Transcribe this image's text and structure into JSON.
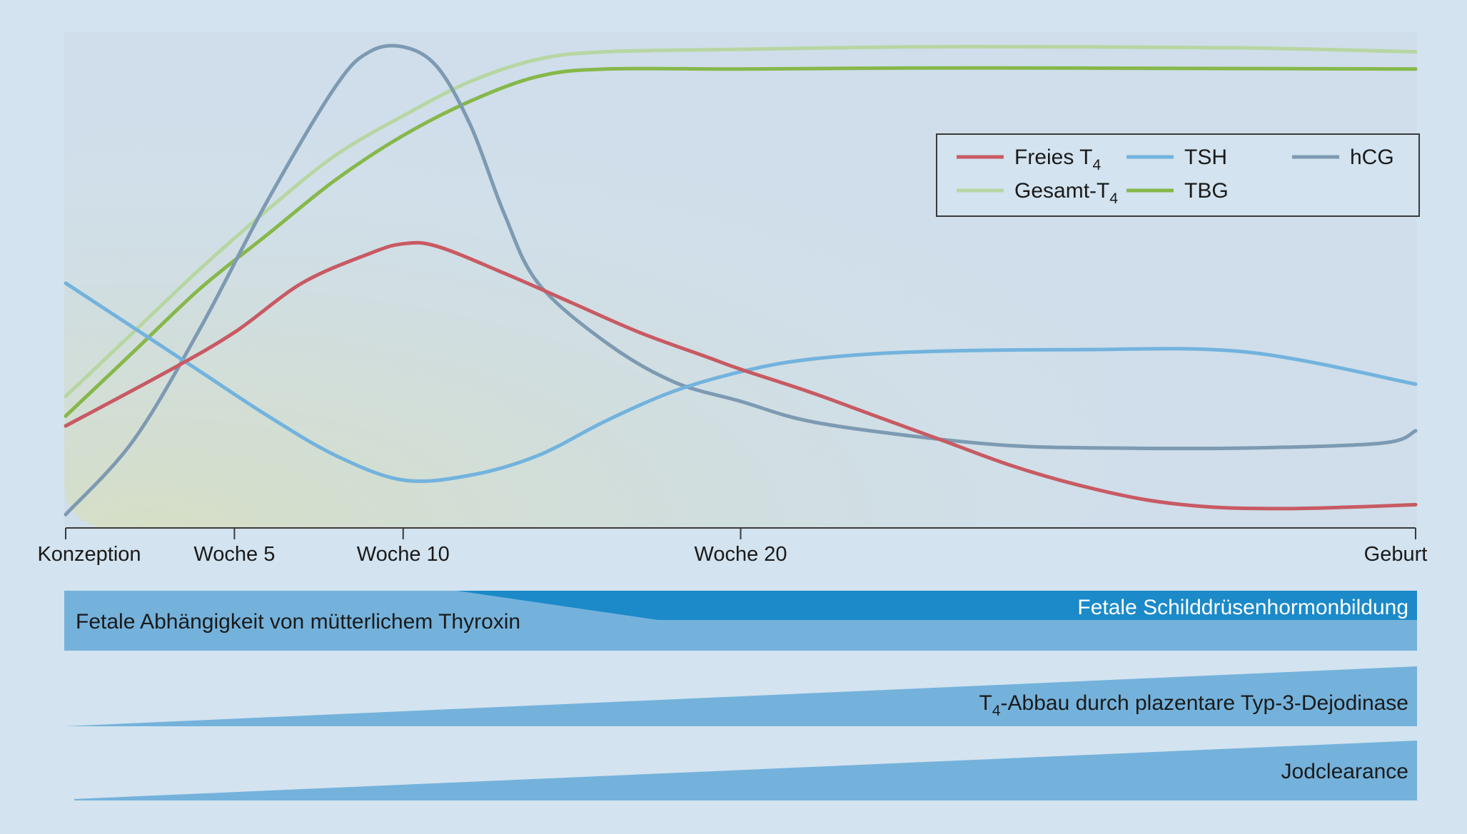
{
  "chart_data": {
    "type": "line",
    "title": "",
    "xlabel": "",
    "ylabel": "",
    "x_domain": [
      0,
      40
    ],
    "y_domain": [
      0,
      100
    ],
    "grid": false,
    "legend_placement": "top-right",
    "x_ticks": [
      {
        "value": 0,
        "label": "Konzeption"
      },
      {
        "value": 5,
        "label": "Woche 5"
      },
      {
        "value": 10,
        "label": "Woche 10"
      },
      {
        "value": 20,
        "label": "Woche 20"
      },
      {
        "value": 40,
        "label": "Geburt"
      }
    ],
    "series": [
      {
        "key": "freies_t4",
        "name": "Freies T",
        "subscript": "4",
        "color": "#c85a63",
        "points": [
          [
            0,
            20
          ],
          [
            3,
            31
          ],
          [
            5,
            39
          ],
          [
            7,
            49
          ],
          [
            9,
            55
          ],
          [
            10,
            57
          ],
          [
            11,
            56.5
          ],
          [
            13,
            51
          ],
          [
            15,
            45
          ],
          [
            17,
            39
          ],
          [
            19,
            34
          ],
          [
            20,
            31.5
          ],
          [
            22,
            27
          ],
          [
            24,
            22
          ],
          [
            26,
            17
          ],
          [
            28,
            12
          ],
          [
            30,
            8
          ],
          [
            32,
            5
          ],
          [
            34,
            3.5
          ],
          [
            36,
            3.2
          ],
          [
            38,
            3.5
          ],
          [
            40,
            4
          ]
        ]
      },
      {
        "key": "tsh",
        "name": "TSH",
        "color": "#72b3de",
        "points": [
          [
            0,
            49
          ],
          [
            2,
            40
          ],
          [
            4,
            31
          ],
          [
            6,
            22
          ],
          [
            8,
            14
          ],
          [
            10,
            9
          ],
          [
            12,
            10
          ],
          [
            14,
            14
          ],
          [
            16,
            21
          ],
          [
            18,
            27
          ],
          [
            20,
            31
          ],
          [
            22,
            33.5
          ],
          [
            25,
            35
          ],
          [
            30,
            35.5
          ],
          [
            35,
            35
          ],
          [
            40,
            28.5
          ]
        ]
      },
      {
        "key": "hcg",
        "name": "hCG",
        "color": "#7d9ab2",
        "points": [
          [
            0,
            2
          ],
          [
            2,
            17
          ],
          [
            4,
            40
          ],
          [
            6,
            66
          ],
          [
            8,
            89
          ],
          [
            9,
            96
          ],
          [
            10,
            97
          ],
          [
            11,
            93
          ],
          [
            12,
            81
          ],
          [
            13,
            63
          ],
          [
            14,
            49
          ],
          [
            16,
            37
          ],
          [
            18,
            29
          ],
          [
            20,
            25
          ],
          [
            22,
            21
          ],
          [
            25,
            18
          ],
          [
            28,
            16
          ],
          [
            31,
            15.5
          ],
          [
            35,
            15.5
          ],
          [
            39,
            16.5
          ],
          [
            40,
            19
          ]
        ]
      },
      {
        "key": "gesamt_t4",
        "name": "Gesamt-T",
        "subscript": "4",
        "color": "#b7d6a2",
        "points": [
          [
            0,
            26
          ],
          [
            2,
            39
          ],
          [
            4,
            52
          ],
          [
            6,
            64
          ],
          [
            8,
            75
          ],
          [
            10,
            83
          ],
          [
            12,
            90
          ],
          [
            14,
            94.5
          ],
          [
            16,
            96
          ],
          [
            20,
            96.5
          ],
          [
            25,
            97
          ],
          [
            30,
            97
          ],
          [
            35,
            96.8
          ],
          [
            40,
            96
          ]
        ]
      },
      {
        "key": "tbg",
        "name": "TBG",
        "color": "#86b84a",
        "points": [
          [
            0,
            22
          ],
          [
            2,
            35
          ],
          [
            4,
            48
          ],
          [
            6,
            59
          ],
          [
            8,
            70
          ],
          [
            10,
            79
          ],
          [
            12,
            86
          ],
          [
            14,
            91
          ],
          [
            16,
            92.5
          ],
          [
            20,
            92.5
          ],
          [
            25,
            92.7
          ],
          [
            30,
            92.7
          ],
          [
            35,
            92.6
          ],
          [
            40,
            92.5
          ]
        ]
      }
    ]
  },
  "bands": {
    "fetal_dependence_label": "Fetale Abhängigkeit von mütterlichem Thyroxin",
    "fetal_production_label": "Fetale Schilddrüsenhormonbildung",
    "t4_degradation_prefix": "T",
    "t4_degradation_subscript": "4",
    "t4_degradation_suffix": "-Abbau durch plazentare Typ-3-Dejodinase",
    "iodine_clearance_label": "Jodclearance",
    "colors": {
      "band": "#74b2dc",
      "band_dark": "#1c8ac9",
      "text_dark": "#1a1a1a",
      "text_light": "#ffffff"
    }
  }
}
